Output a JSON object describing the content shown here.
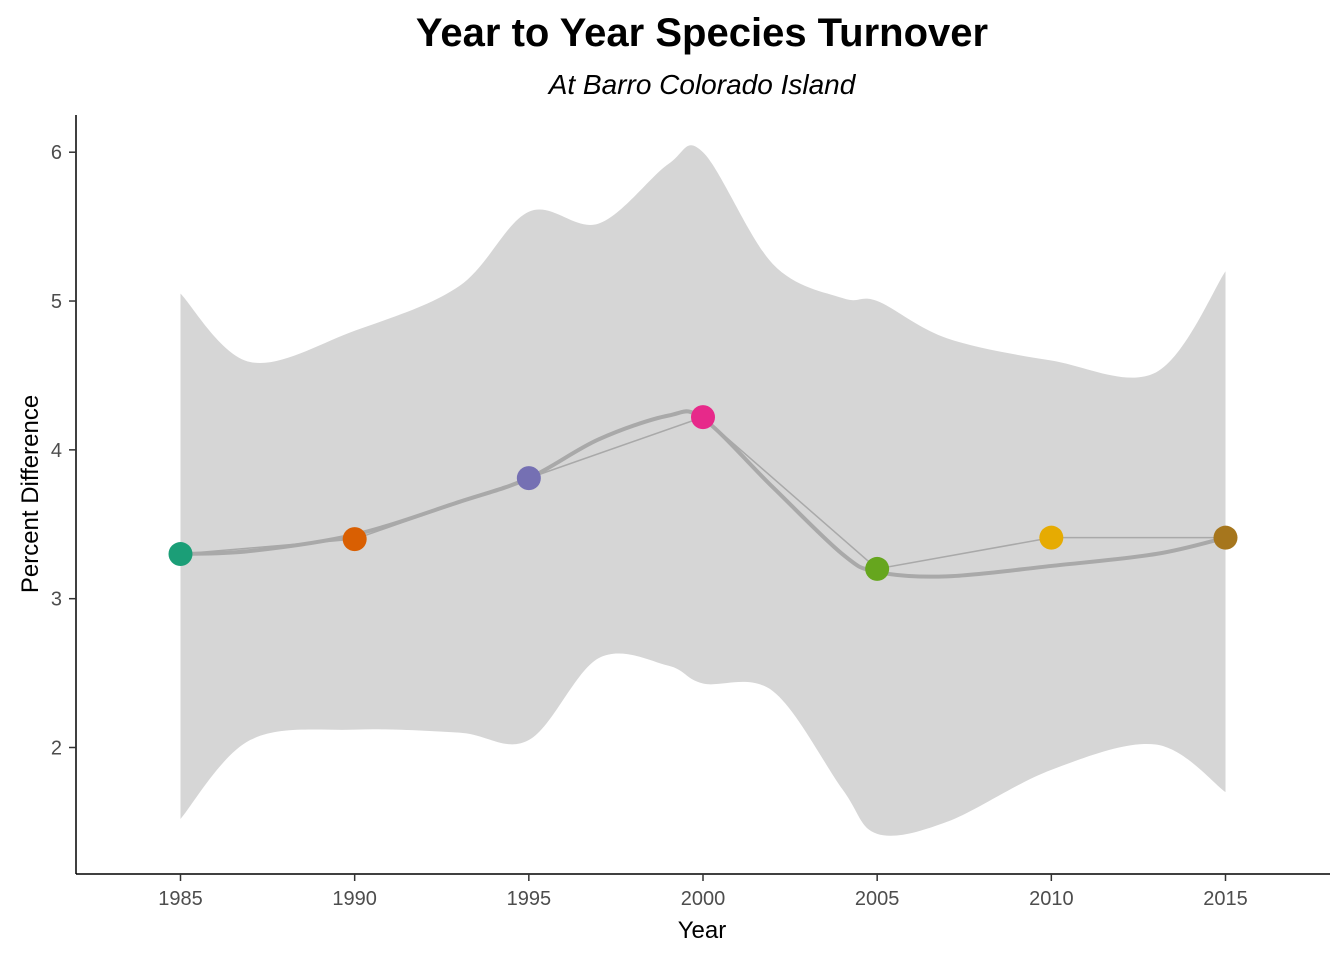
{
  "chart_data": {
    "type": "line",
    "title": "Year to Year Species Turnover",
    "subtitle": "At Barro Colorado Island",
    "xlabel": "Year",
    "ylabel": "Percent Difference",
    "xlim": [
      1982,
      2018
    ],
    "ylim": [
      1.15,
      6.25
    ],
    "x_ticks": [
      1985,
      1990,
      1995,
      2000,
      2005,
      2010,
      2015
    ],
    "y_ticks": [
      2,
      3,
      4,
      5,
      6
    ],
    "grid": false,
    "legend": "none",
    "series": [
      {
        "type": "line+points",
        "x": [
          1985,
          1990,
          1995,
          2000,
          2005,
          2010,
          2015
        ],
        "y": [
          3.3,
          3.4,
          3.81,
          4.22,
          3.2,
          3.41,
          3.41
        ],
        "point_colors": [
          "#1b9e77",
          "#d95f02",
          "#7570b3",
          "#e7298a",
          "#66a61e",
          "#e6ab02",
          "#a6761d"
        ],
        "line_color": "#a9a9a9"
      }
    ],
    "smooth": {
      "method": "loess",
      "color": "#a9a9a9",
      "ribbon_color": "#d6d6d6",
      "x": [
        1985,
        1987,
        1990,
        1993,
        1995,
        1997,
        1999,
        2000,
        2002,
        2004,
        2005,
        2007,
        2010,
        2013,
        2015
      ],
      "y": [
        3.3,
        3.32,
        3.43,
        3.65,
        3.81,
        4.07,
        4.23,
        4.21,
        3.75,
        3.3,
        3.18,
        3.15,
        3.22,
        3.3,
        3.41
      ],
      "lower": [
        1.52,
        2.05,
        2.12,
        2.1,
        2.05,
        2.6,
        2.55,
        2.43,
        2.38,
        1.72,
        1.42,
        1.5,
        1.85,
        2.02,
        1.7
      ],
      "upper": [
        5.05,
        4.59,
        4.8,
        5.1,
        5.6,
        5.52,
        5.92,
        6.0,
        5.25,
        5.02,
        5.0,
        4.75,
        4.6,
        4.52,
        5.2
      ]
    }
  }
}
